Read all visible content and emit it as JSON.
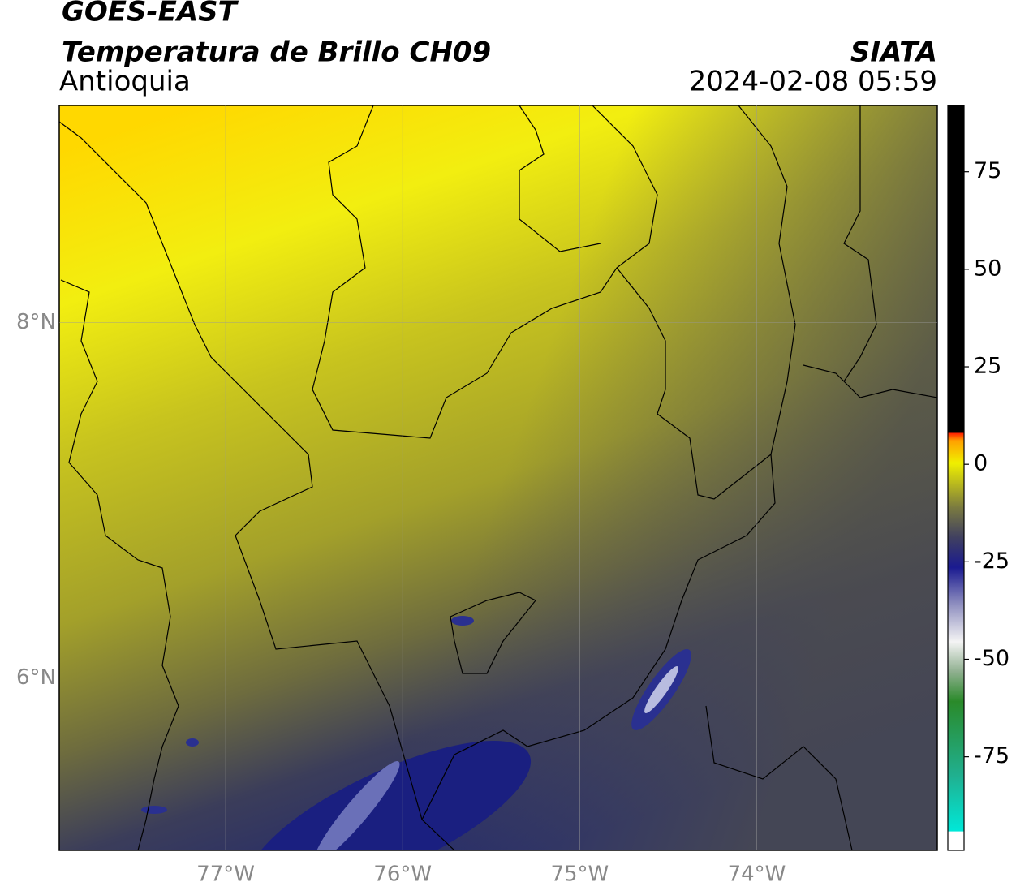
{
  "header": {
    "title": "GOES-EAST",
    "subtitle": "Temperatura de Brillo CH09",
    "region": "Antioquia",
    "source": "SIATA",
    "timestamp": "2024-02-08 05:59"
  },
  "map": {
    "xlim": [
      -77.94,
      -72.98
    ],
    "ylim": [
      5.03,
      9.22
    ],
    "xticks": [
      {
        "value": -77,
        "label": "77°W"
      },
      {
        "value": -76,
        "label": "76°W"
      },
      {
        "value": -75,
        "label": "75°W"
      },
      {
        "value": -74,
        "label": "74°W"
      }
    ],
    "yticks": [
      {
        "value": 8,
        "label": "8°N"
      },
      {
        "value": 6,
        "label": "6°N"
      }
    ],
    "grid": true
  },
  "colorbar": {
    "lim": [
      -99,
      92
    ],
    "ticks": [
      75,
      50,
      25,
      0,
      -25,
      -50,
      -75
    ]
  }
}
